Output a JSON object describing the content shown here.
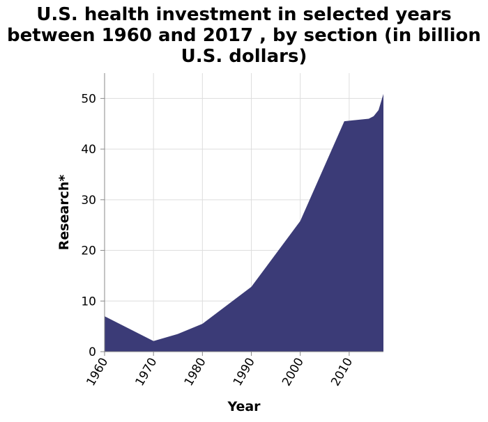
{
  "chart_data": {
    "type": "area",
    "title_lines": [
      "U.S. health investment in selected years",
      "between 1960 and 2017 , by section (in billion",
      "U.S. dollars)"
    ],
    "xlabel": "Year",
    "ylabel": "Research*",
    "xlim": [
      1960,
      2017
    ],
    "ylim": [
      0,
      55
    ],
    "x_ticks": [
      1960,
      1970,
      1980,
      1990,
      2000,
      2010
    ],
    "y_ticks": [
      0,
      10,
      20,
      30,
      40,
      50
    ],
    "grid": true,
    "colors": {
      "fill": "#3b3b77",
      "grid": "#dddddd",
      "axis": "#888888"
    },
    "x": [
      1960,
      1970,
      1975,
      1980,
      1990,
      2000,
      2009,
      2014,
      2015,
      2016,
      2017
    ],
    "values": [
      7.0,
      2.1,
      3.5,
      5.5,
      12.8,
      25.8,
      45.5,
      46.0,
      46.5,
      47.7,
      50.9
    ]
  }
}
